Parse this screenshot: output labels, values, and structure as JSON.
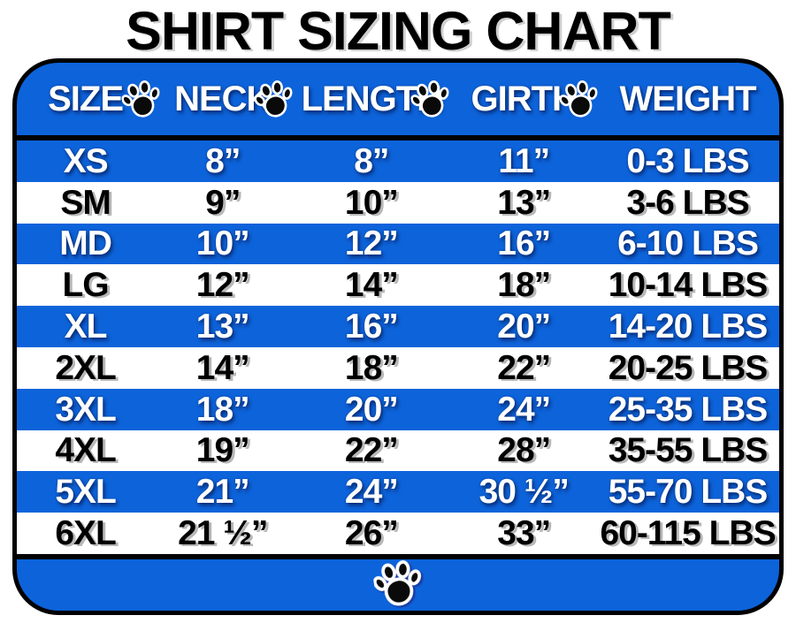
{
  "chart_data": {
    "type": "table",
    "title": "SHIRT SIZING CHART",
    "columns": [
      "SIZE",
      "NECK",
      "LENGTH",
      "GIRTH",
      "WEIGHT"
    ],
    "rows": [
      [
        "XS",
        "8”",
        "8”",
        "11”",
        "0-3 LBS"
      ],
      [
        "SM",
        "9”",
        "10”",
        "13”",
        "3-6 LBS"
      ],
      [
        "MD",
        "10”",
        "12”",
        "16”",
        "6-10 LBS"
      ],
      [
        "LG",
        "12”",
        "14”",
        "18”",
        "10-14 LBS"
      ],
      [
        "XL",
        "13”",
        "16”",
        "20”",
        "14-20 LBS"
      ],
      [
        "2XL",
        "14”",
        "18”",
        "22”",
        "20-25 LBS"
      ],
      [
        "3XL",
        "18”",
        "20”",
        "24”",
        "25-35 LBS"
      ],
      [
        "4XL",
        "19”",
        "22”",
        "28”",
        "35-55 LBS"
      ],
      [
        "5XL",
        "21”",
        "24”",
        "30 ½”",
        "55-70 LBS"
      ],
      [
        "6XL",
        "21 ½”",
        "26”",
        "33”",
        "60-115 LBS"
      ]
    ],
    "layout": {
      "row_style_alternation": [
        "blue-white-text",
        "white-black-text"
      ],
      "header_separator_icons": "paw-icon",
      "footer_icon": "paw-icon"
    }
  },
  "colors": {
    "blue": "#0d63da",
    "border_black": "#000000",
    "text_light": "#ffffff",
    "text_dark": "#000000"
  }
}
